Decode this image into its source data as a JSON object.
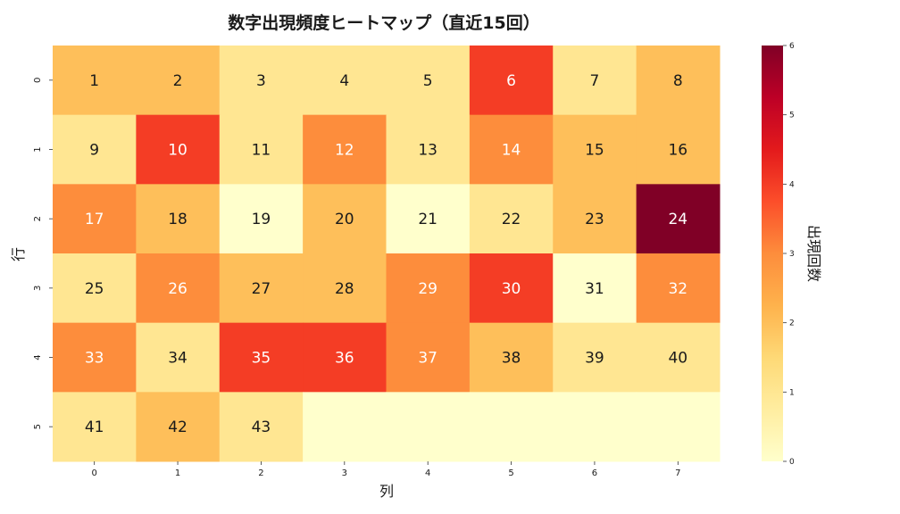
{
  "chart_data": {
    "type": "heatmap",
    "title": "数字出現頻度ヒートマップ（直近15回）",
    "xlabel": "列",
    "ylabel": "行",
    "colorbar_label": "出現回数",
    "x_categories": [
      "0",
      "1",
      "2",
      "3",
      "4",
      "5",
      "6",
      "7"
    ],
    "y_categories": [
      "0",
      "1",
      "2",
      "3",
      "4",
      "5"
    ],
    "colorbar_ticks": [
      "0",
      "1",
      "2",
      "3",
      "4",
      "5",
      "6"
    ],
    "vmin": 0,
    "vmax": 6,
    "colormap": "YlOrRd",
    "annotations": [
      [
        "1",
        "2",
        "3",
        "4",
        "5",
        "6",
        "7",
        "8"
      ],
      [
        "9",
        "10",
        "11",
        "12",
        "13",
        "14",
        "15",
        "16"
      ],
      [
        "17",
        "18",
        "19",
        "20",
        "21",
        "22",
        "23",
        "24"
      ],
      [
        "25",
        "26",
        "27",
        "28",
        "29",
        "30",
        "31",
        "32"
      ],
      [
        "33",
        "34",
        "35",
        "36",
        "37",
        "38",
        "39",
        "40"
      ],
      [
        "41",
        "42",
        "43",
        "",
        "",
        "",
        "",
        ""
      ]
    ],
    "values": [
      [
        2,
        2,
        1,
        1,
        1,
        4,
        1,
        2
      ],
      [
        1,
        4,
        1,
        3,
        1,
        3,
        2,
        2
      ],
      [
        3,
        2,
        0,
        2,
        0,
        1,
        2,
        6
      ],
      [
        1,
        3,
        2,
        2,
        3,
        4,
        0,
        3
      ],
      [
        3,
        1,
        4,
        4,
        3,
        2,
        1,
        1
      ],
      [
        1,
        2,
        1,
        0,
        0,
        0,
        0,
        0
      ]
    ]
  }
}
